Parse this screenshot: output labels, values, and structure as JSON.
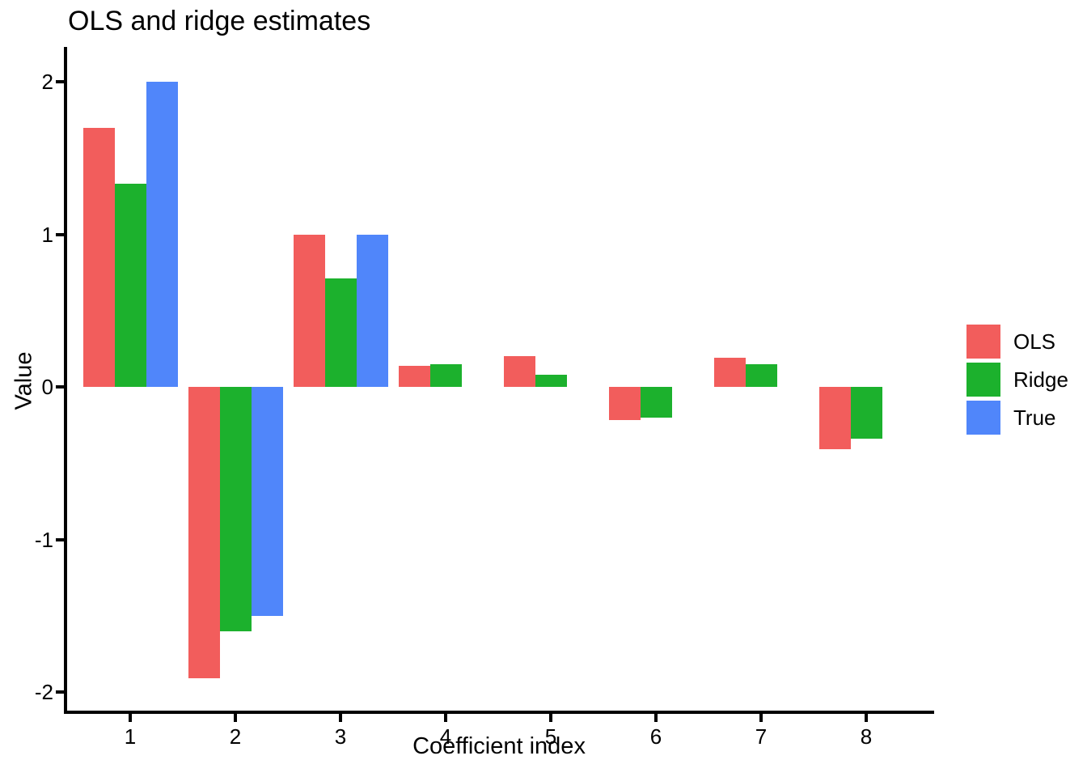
{
  "chart_data": {
    "type": "bar",
    "title": "OLS and ridge estimates",
    "xlabel": "Coefficient index",
    "ylabel": "Value",
    "categories": [
      "1",
      "2",
      "3",
      "4",
      "5",
      "6",
      "7",
      "8"
    ],
    "series": [
      {
        "name": "OLS",
        "color": "#F25D5C",
        "values": [
          1.7,
          -1.91,
          1.0,
          0.14,
          0.2,
          -0.22,
          0.19,
          -0.41
        ]
      },
      {
        "name": "Ridge",
        "color": "#1CB12D",
        "values": [
          1.33,
          -1.6,
          0.71,
          0.15,
          0.08,
          -0.2,
          0.15,
          -0.34
        ]
      },
      {
        "name": "True",
        "color": "#5086FA",
        "values": [
          2.0,
          -1.5,
          1.0,
          0.0,
          0.0,
          0.0,
          0.0,
          0.0
        ]
      }
    ],
    "y_ticks": [
      2,
      1,
      0,
      -1,
      -2
    ],
    "ylim": [
      -2.14,
      2.23
    ],
    "grid": false,
    "legend_position": "right",
    "legend_entries": [
      "OLS",
      "Ridge",
      "True"
    ],
    "axis_color": "#000000",
    "background_color": "#ffffff"
  }
}
